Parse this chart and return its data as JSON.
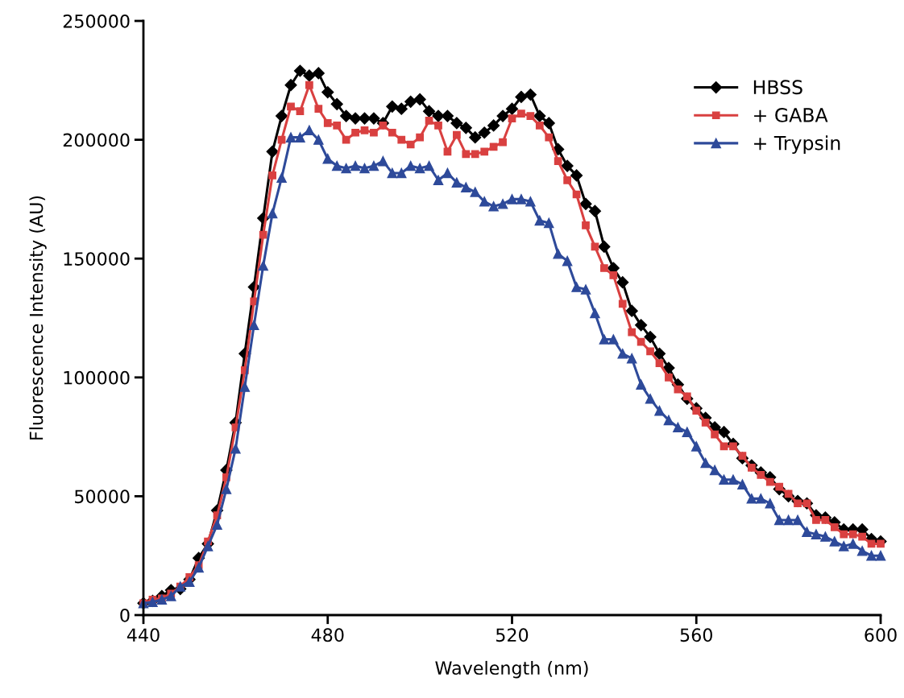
{
  "chart_data": {
    "type": "line",
    "xlabel": "Wavelength (nm)",
    "ylabel": "Fluorescence Intensity (AU)",
    "x": [
      440,
      442,
      444,
      446,
      448,
      450,
      452,
      454,
      456,
      458,
      460,
      462,
      464,
      466,
      468,
      470,
      472,
      474,
      476,
      478,
      480,
      482,
      484,
      486,
      488,
      490,
      492,
      494,
      496,
      498,
      500,
      502,
      504,
      506,
      508,
      510,
      512,
      514,
      516,
      518,
      520,
      522,
      524,
      526,
      528,
      530,
      532,
      534,
      536,
      538,
      540,
      542,
      544,
      546,
      548,
      550,
      552,
      554,
      556,
      558,
      560,
      562,
      564,
      566,
      568,
      570,
      572,
      574,
      576,
      578,
      580,
      582,
      584,
      586,
      588,
      590,
      592,
      594,
      596,
      598,
      600
    ],
    "xlim": [
      440,
      600
    ],
    "xticks": [
      440,
      480,
      520,
      560,
      600
    ],
    "ylim": [
      0,
      250000
    ],
    "yticks": [
      0,
      50000,
      100000,
      150000,
      200000,
      250000
    ],
    "grid": false,
    "legend": "top right",
    "line_style": "solid",
    "series": [
      {
        "name": "HBSS",
        "color": "#000000",
        "marker": "diamond",
        "values": [
          5000,
          6000,
          8000,
          10500,
          11000,
          15000,
          24000,
          30000,
          44000,
          61000,
          81000,
          110000,
          138000,
          167000,
          195000,
          210000,
          223000,
          229000,
          227000,
          228000,
          220000,
          215000,
          210000,
          209000,
          209000,
          209000,
          207000,
          214000,
          213000,
          216000,
          217000,
          212000,
          210000,
          210000,
          207000,
          205000,
          201000,
          203000,
          206000,
          210000,
          213000,
          218000,
          219000,
          210000,
          207000,
          196000,
          189000,
          185000,
          173000,
          170000,
          155000,
          146000,
          140000,
          128000,
          122000,
          117000,
          110000,
          104000,
          97000,
          91000,
          87000,
          83000,
          79000,
          77000,
          72000,
          66000,
          63000,
          60000,
          58000,
          53000,
          50000,
          48000,
          47000,
          42000,
          41000,
          39000,
          36000,
          36000,
          36000,
          32000,
          31000
        ]
      },
      {
        "name": "+ GABA",
        "color": "#d94040",
        "marker": "square",
        "values": [
          5000,
          6500,
          7000,
          9000,
          12000,
          16000,
          21000,
          31000,
          42000,
          58000,
          79000,
          103000,
          132000,
          160000,
          185000,
          200000,
          214000,
          212000,
          223000,
          213000,
          207000,
          206000,
          200000,
          203000,
          204000,
          203000,
          206000,
          203000,
          200000,
          198000,
          201000,
          208000,
          206000,
          195000,
          202000,
          194000,
          194000,
          195000,
          197000,
          199000,
          209000,
          211000,
          210000,
          206000,
          201000,
          191000,
          183000,
          177000,
          164000,
          155000,
          146000,
          143000,
          131000,
          119000,
          115000,
          111000,
          106000,
          100000,
          95000,
          92000,
          86000,
          81000,
          76000,
          71000,
          71000,
          67000,
          62000,
          59000,
          56000,
          54000,
          51000,
          47000,
          47000,
          40000,
          40000,
          37000,
          34000,
          34000,
          33000,
          30000,
          30000
        ]
      },
      {
        "name": "+ Trypsin",
        "color": "#2e4a9a",
        "marker": "triangle",
        "values": [
          5000,
          5500,
          6500,
          8000,
          12000,
          14000,
          20000,
          29000,
          38000,
          53000,
          70000,
          96000,
          122000,
          147000,
          169000,
          184000,
          201000,
          201000,
          204000,
          200000,
          192000,
          189000,
          188000,
          189000,
          188000,
          189000,
          191000,
          186000,
          186000,
          189000,
          188000,
          189000,
          183000,
          186000,
          182000,
          180000,
          178000,
          174000,
          172000,
          173000,
          175000,
          175000,
          174000,
          166000,
          165000,
          152000,
          149000,
          138000,
          137000,
          127000,
          116000,
          116000,
          110000,
          108000,
          97000,
          91000,
          86000,
          82000,
          79000,
          77000,
          71000,
          64000,
          61000,
          57000,
          57000,
          55000,
          49000,
          49000,
          47000,
          40000,
          40000,
          40000,
          35000,
          34000,
          33000,
          31000,
          29000,
          30000,
          27000,
          25000,
          25000
        ]
      }
    ]
  }
}
